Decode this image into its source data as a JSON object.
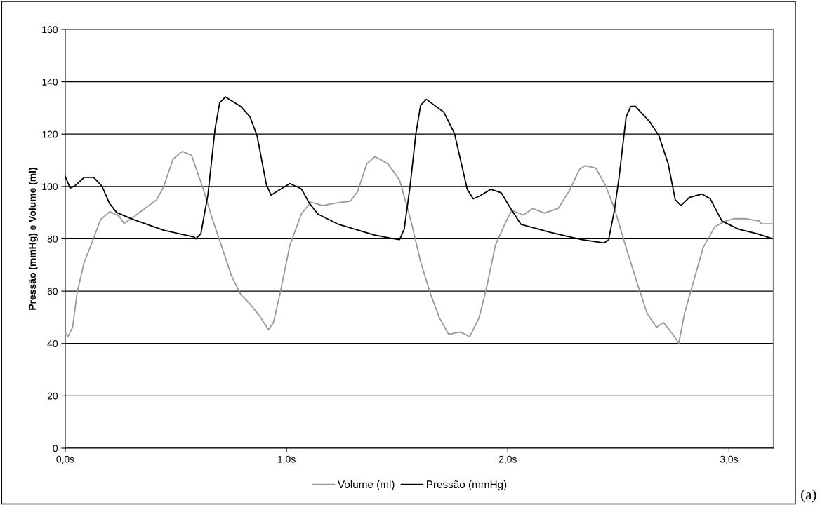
{
  "chart_data": {
    "type": "line",
    "ylabel": "Pressão (mmHg) e Volume (ml)",
    "xlim": [
      0,
      3.2
    ],
    "xticks": [
      {
        "value": 0,
        "label": "0,0s"
      },
      {
        "value": 1,
        "label": "1,0s"
      },
      {
        "value": 2,
        "label": "2,0s"
      },
      {
        "value": 3,
        "label": "3,0s"
      }
    ],
    "ylim": [
      0,
      160
    ],
    "yticks": [
      0,
      20,
      40,
      60,
      80,
      100,
      120,
      140,
      160
    ],
    "grid": "y",
    "legend": "bottom",
    "marker": "none",
    "line_style": "solid",
    "annotations": [
      "(a)"
    ],
    "series": [
      {
        "name": "Volume (ml)",
        "color": "#999999",
        "x": [
          0.001,
          0.012,
          0.033,
          0.054,
          0.086,
          0.128,
          0.159,
          0.202,
          0.244,
          0.265,
          0.307,
          0.349,
          0.413,
          0.444,
          0.487,
          0.529,
          0.571,
          0.624,
          0.666,
          0.709,
          0.751,
          0.793,
          0.835,
          0.877,
          0.918,
          0.941,
          0.972,
          1.015,
          1.067,
          1.11,
          1.162,
          1.226,
          1.289,
          1.321,
          1.363,
          1.4,
          1.458,
          1.511,
          1.564,
          1.606,
          1.648,
          1.691,
          1.733,
          1.786,
          1.828,
          1.87,
          1.902,
          1.944,
          1.986,
          2.018,
          2.071,
          2.113,
          2.166,
          2.229,
          2.282,
          2.324,
          2.35,
          2.398,
          2.44,
          2.482,
          2.535,
          2.588,
          2.63,
          2.672,
          2.704,
          2.746,
          2.773,
          2.799,
          2.841,
          2.883,
          2.936,
          2.979,
          3.021,
          3.074,
          3.137,
          3.147,
          3.195
        ],
        "values": [
          44,
          42.6,
          46.2,
          59.6,
          71.2,
          80.1,
          87.3,
          90.4,
          88.6,
          85.9,
          88.2,
          90.9,
          94.9,
          99.8,
          110.5,
          113.4,
          111.9,
          98.9,
          87.3,
          76.6,
          65.9,
          58.7,
          55.1,
          50.7,
          45.3,
          48,
          59.6,
          77.5,
          89.5,
          94,
          92.7,
          93.7,
          94.4,
          98,
          108.7,
          111.4,
          108.7,
          102.5,
          86.4,
          71.2,
          59.6,
          49.8,
          43.5,
          44.4,
          42.6,
          49.8,
          60.5,
          77.5,
          85.5,
          90.9,
          89.1,
          91.6,
          89.8,
          91.7,
          98.9,
          106.5,
          108,
          107,
          100.7,
          91.7,
          76.6,
          62.3,
          51.5,
          46.2,
          48,
          43.5,
          40.1,
          51.5,
          64.1,
          76.6,
          84.6,
          86.6,
          87.7,
          87.7,
          86.8,
          85.7,
          85.7
        ]
      },
      {
        "name": "Pressão (mmHg)",
        "color": "#000000",
        "x": [
          0,
          0.022,
          0.043,
          0.086,
          0.128,
          0.165,
          0.2,
          0.233,
          0.307,
          0.444,
          0.582,
          0.59,
          0.613,
          0.645,
          0.677,
          0.698,
          0.724,
          0.793,
          0.835,
          0.867,
          0.909,
          0.93,
          0.972,
          1.015,
          1.067,
          1.104,
          1.141,
          1.236,
          1.395,
          1.479,
          1.511,
          1.532,
          1.558,
          1.585,
          1.606,
          1.632,
          1.711,
          1.759,
          1.817,
          1.844,
          1.87,
          1.923,
          1.97,
          2.018,
          2.06,
          2.197,
          2.334,
          2.435,
          2.456,
          2.482,
          2.503,
          2.525,
          2.535,
          2.556,
          2.577,
          2.641,
          2.683,
          2.725,
          2.757,
          2.783,
          2.82,
          2.878,
          2.915,
          2.968,
          3.042,
          3.126,
          3.195
        ],
        "values": [
          103.8,
          99.4,
          100.2,
          103.5,
          103.5,
          100.2,
          93.5,
          90,
          87.4,
          83.3,
          80.7,
          80,
          82,
          97,
          122,
          132,
          134.2,
          130.6,
          126.6,
          119.4,
          100.7,
          96.7,
          98.9,
          101.1,
          99.1,
          93.5,
          89.5,
          85.5,
          81.5,
          80.1,
          79.7,
          83.7,
          99.8,
          120.3,
          131,
          133.3,
          128.4,
          120.3,
          98.9,
          95.3,
          96.2,
          98.9,
          97.6,
          90.9,
          85.5,
          82.4,
          79.7,
          78.4,
          79.7,
          90.9,
          103.4,
          119.4,
          126.6,
          130.6,
          130.6,
          124.8,
          119.4,
          108.7,
          94.9,
          92.7,
          95.8,
          97.1,
          95.3,
          86.8,
          83.7,
          82,
          80.1
        ]
      }
    ]
  }
}
